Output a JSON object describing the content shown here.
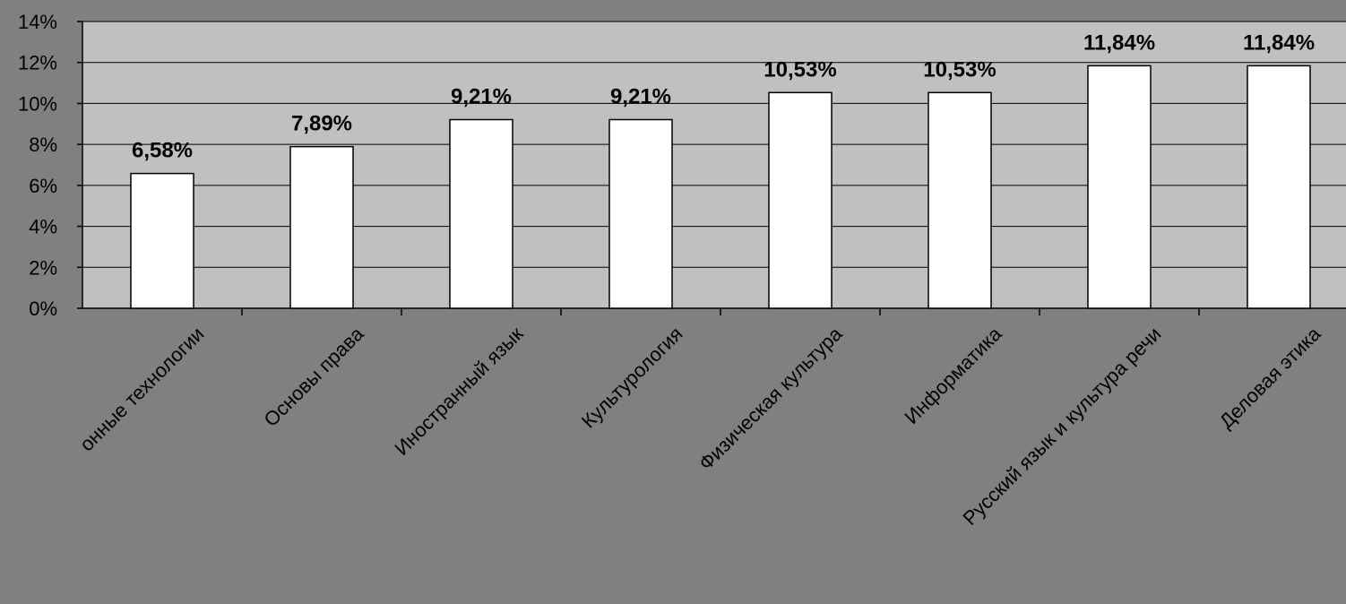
{
  "chart_data": {
    "type": "bar",
    "title": "",
    "xlabel": "",
    "ylabel": "",
    "categories": [
      "онные технологии",
      "Основы права",
      "Иностранный язык",
      "Культурология",
      "Физическая культура",
      "Информатика",
      "Русский язык и культура речи",
      "Деловая этика"
    ],
    "values": [
      6.58,
      7.89,
      9.21,
      9.21,
      10.53,
      10.53,
      11.84,
      11.84
    ],
    "data_labels": [
      "6,58%",
      "7,89%",
      "9,21%",
      "9,21%",
      "10,53%",
      "10,53%",
      "11,84%",
      "11,84%"
    ],
    "ylim": [
      0,
      14
    ],
    "yticks": [
      0,
      2,
      4,
      6,
      8,
      10,
      12,
      14
    ],
    "ytick_labels": [
      "0%",
      "2%",
      "4%",
      "6%",
      "8%",
      "10%",
      "12%",
      "14%"
    ],
    "grid": true,
    "legend": "none",
    "colors": {
      "page_background": "#808080",
      "plot_background": "#c0c0c0",
      "bar_fill": "#ffffff",
      "bar_stroke": "#000000",
      "gridline": "#000000"
    }
  }
}
